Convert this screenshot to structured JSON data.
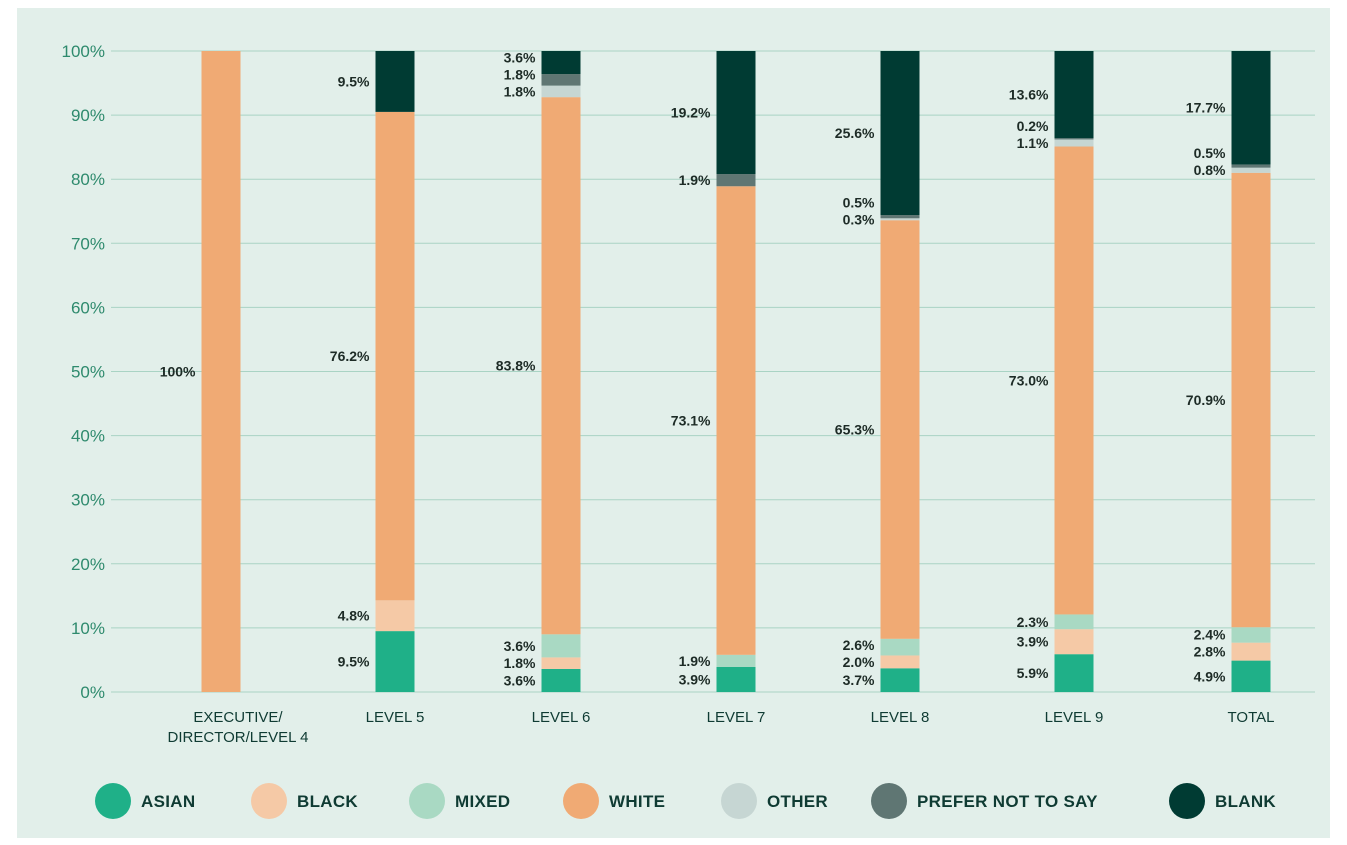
{
  "chart_data": {
    "type": "bar",
    "stacked": true,
    "categories": [
      "EXECUTIVE/\nDIRECTOR/LEVEL 4",
      "LEVEL 5",
      "LEVEL 6",
      "LEVEL 7",
      "LEVEL 8",
      "LEVEL 9",
      "TOTAL"
    ],
    "ylim": [
      0,
      100
    ],
    "yticks": [
      "0%",
      "10%",
      "20%",
      "30%",
      "40%",
      "50%",
      "60%",
      "70%",
      "80%",
      "90%",
      "100%"
    ],
    "grid": true,
    "legend_position": "bottom",
    "series": [
      {
        "name": "ASIAN",
        "color": "#1fb088",
        "values": [
          0,
          9.5,
          3.6,
          3.9,
          3.7,
          5.9,
          4.9
        ],
        "labels": [
          "",
          "9.5%",
          "3.6%",
          "3.9%",
          "3.7%",
          "5.9%",
          "4.9%"
        ]
      },
      {
        "name": "BLACK",
        "color": "#f5c9a6",
        "values": [
          0,
          4.8,
          1.8,
          0,
          2.0,
          3.9,
          2.8
        ],
        "labels": [
          "",
          "4.8%",
          "1.8%",
          "",
          "2.0%",
          "3.9%",
          "2.8%"
        ]
      },
      {
        "name": "MIXED",
        "color": "#a9d9c3",
        "values": [
          0,
          0,
          3.6,
          1.9,
          2.6,
          2.3,
          2.4
        ],
        "labels": [
          "",
          "",
          "3.6%",
          "1.9%",
          "2.6%",
          "2.3%",
          "2.4%"
        ]
      },
      {
        "name": "WHITE",
        "color": "#f0aa74",
        "values": [
          100,
          76.2,
          83.8,
          73.1,
          65.3,
          73.0,
          70.9
        ],
        "labels": [
          "100%",
          "76.2%",
          "83.8%",
          "73.1%",
          "65.3%",
          "73.0%",
          "70.9%"
        ]
      },
      {
        "name": "OTHER",
        "color": "#c6d6d3",
        "values": [
          0,
          0,
          1.8,
          0,
          0.3,
          1.1,
          0.8
        ],
        "labels": [
          "",
          "",
          "1.8%",
          "",
          "0.3%",
          "1.1%",
          "0.8%"
        ]
      },
      {
        "name": "PREFER NOT TO SAY",
        "color": "#5f7673",
        "values": [
          0,
          0,
          1.8,
          1.9,
          0.5,
          0.2,
          0.5
        ],
        "labels": [
          "",
          "",
          "1.8%",
          "1.9%",
          "0.5%",
          "0.2%",
          "0.5%"
        ]
      },
      {
        "name": "BLANK",
        "color": "#003b33",
        "values": [
          0,
          9.5,
          3.6,
          19.2,
          25.6,
          13.6,
          17.7
        ],
        "labels": [
          "",
          "9.5%",
          "3.6%",
          "19.2%",
          "25.6%",
          "13.6%",
          "17.7%"
        ]
      }
    ]
  }
}
